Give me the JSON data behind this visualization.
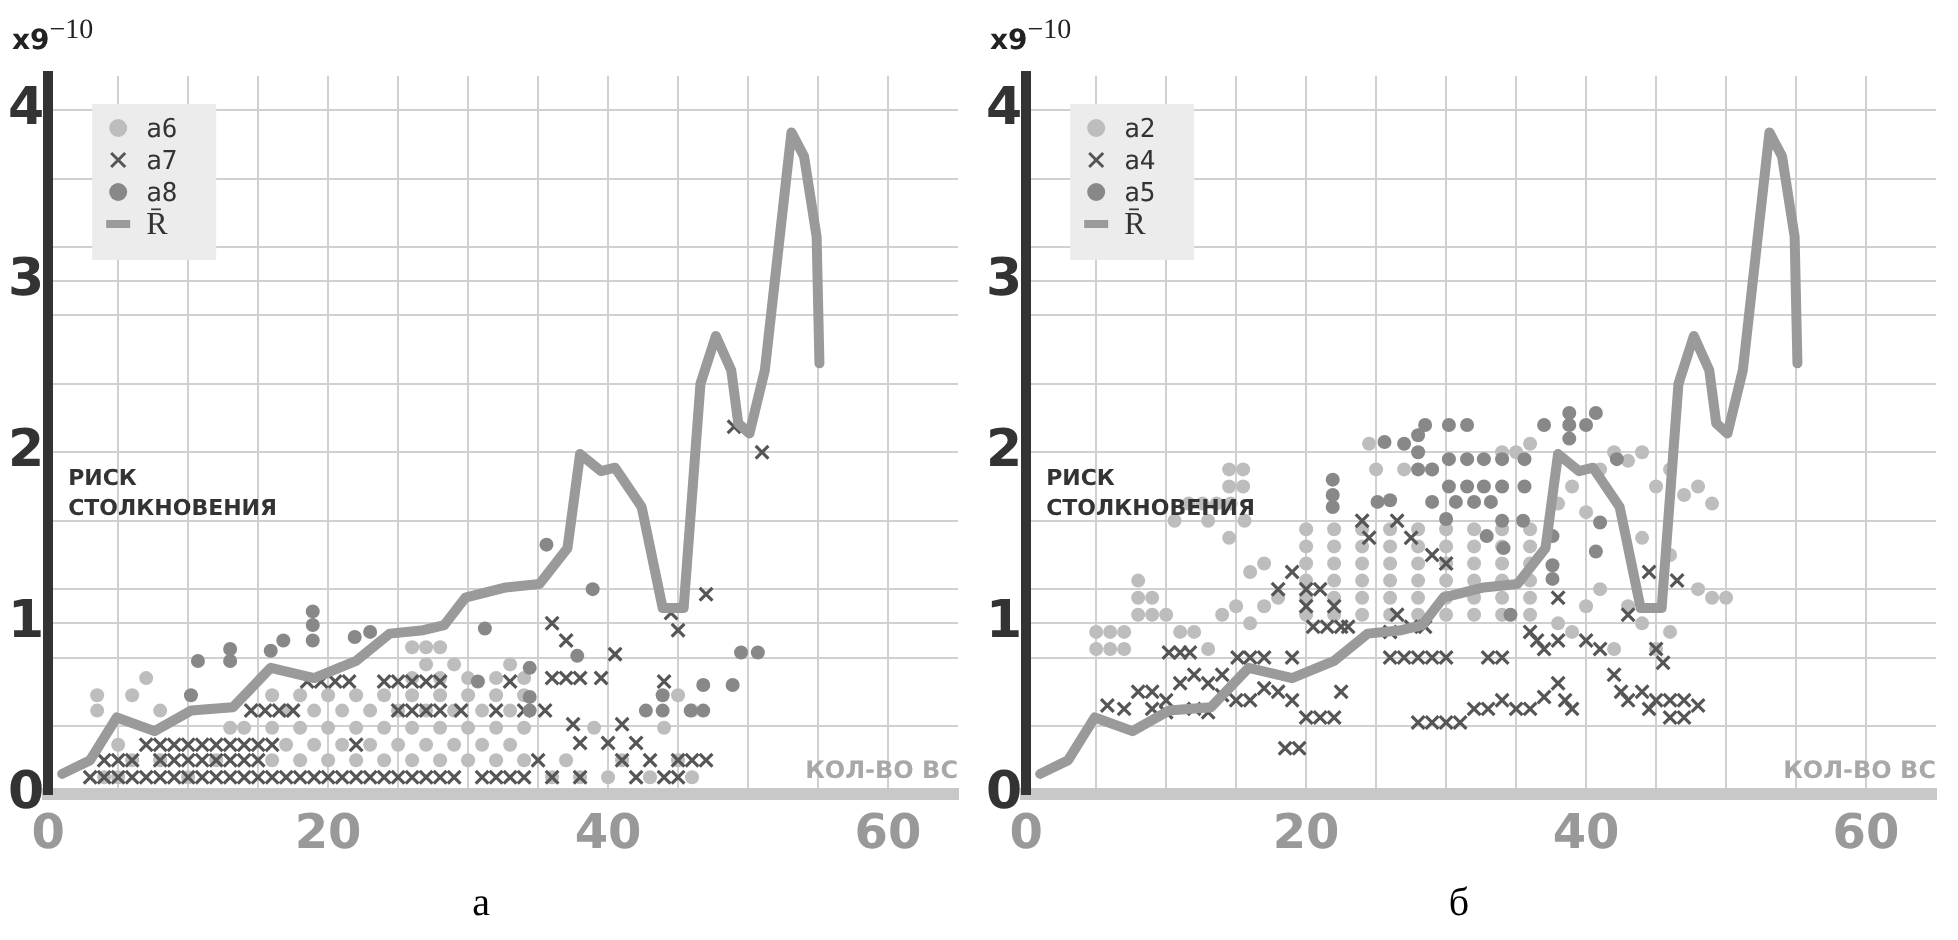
{
  "chart_data": [
    {
      "type": "scatter",
      "title": "а",
      "xlabel": "КОЛ-ВО ВС",
      "ylabel": "РИСК СТОЛКНОВЕНИЯ",
      "annotations": [
        "x9$^{−10}$"
      ],
      "xlim": [
        0,
        65
      ],
      "xticks": [
        0,
        {
          "value": 5,
          "label": null
        },
        {
          "value": 10,
          "label": null
        },
        {
          "value": 15,
          "label": null
        },
        20,
        {
          "value": 25,
          "label": null
        },
        {
          "value": 30,
          "label": null
        },
        {
          "value": 35,
          "label": null
        },
        40,
        {
          "value": 45,
          "label": null
        },
        {
          "value": 50,
          "label": null
        },
        {
          "value": 55,
          "label": null
        },
        60
      ],
      "ylim": [
        0,
        4.2
      ],
      "yticks": [
        0,
        {
          "value": 0.4,
          "label": null
        },
        {
          "value": 0.8,
          "label": null
        },
        1,
        {
          "value": 1.2,
          "label": null
        },
        {
          "value": 1.6,
          "label": null
        },
        2,
        {
          "value": 2.4,
          "label": null
        },
        {
          "value": 2.8,
          "label": null
        },
        3,
        {
          "value": 3.2,
          "label": null
        },
        {
          "value": 3.6,
          "label": null
        },
        4
      ],
      "grid": true,
      "legend": "top left",
      "series": [
        {
          "name": "a6",
          "marker": "circle",
          "color": "#bdbdbd",
          "x": [
            3.5,
            3.5,
            6,
            7,
            8,
            5,
            6,
            4,
            5,
            8,
            10,
            12,
            13,
            14,
            16,
            18,
            20,
            22,
            24,
            26,
            28,
            30,
            32,
            34,
            16,
            18,
            20,
            22,
            24,
            26,
            28,
            30,
            32,
            34,
            16,
            18,
            20,
            22,
            24,
            26,
            28,
            30,
            32,
            34,
            17,
            19,
            21,
            23,
            25,
            27,
            29,
            31,
            33,
            17,
            19,
            21,
            23,
            25,
            27,
            29,
            31,
            33,
            26,
            27,
            28,
            27,
            26,
            29,
            32,
            33,
            34,
            28,
            30,
            36,
            37,
            38,
            39,
            40,
            41,
            43,
            44,
            45,
            46,
            45,
            46
          ],
          "values": [
            0.58,
            0.49,
            0.58,
            0.68,
            0.49,
            0.29,
            0.2,
            0.1,
            0.1,
            0.2,
            0.1,
            0.2,
            0.39,
            0.39,
            0.2,
            0.2,
            0.2,
            0.2,
            0.2,
            0.2,
            0.2,
            0.2,
            0.2,
            0.2,
            0.39,
            0.39,
            0.39,
            0.39,
            0.39,
            0.39,
            0.39,
            0.39,
            0.39,
            0.39,
            0.58,
            0.58,
            0.58,
            0.58,
            0.58,
            0.58,
            0.58,
            0.58,
            0.58,
            0.58,
            0.29,
            0.29,
            0.29,
            0.29,
            0.29,
            0.29,
            0.29,
            0.29,
            0.29,
            0.49,
            0.49,
            0.49,
            0.49,
            0.49,
            0.49,
            0.49,
            0.49,
            0.49,
            0.68,
            0.76,
            0.86,
            0.86,
            0.86,
            0.76,
            0.68,
            0.76,
            0.68,
            0.68,
            0.68,
            0.1,
            0.2,
            0.1,
            0.39,
            0.1,
            0.2,
            0.1,
            0.39,
            0.58,
            0.49,
            0.2,
            0.1
          ]
        },
        {
          "name": "a7",
          "marker": "cross",
          "color": "#555555",
          "x": [
            3,
            4,
            5,
            6,
            7,
            8,
            9,
            10,
            11,
            12,
            13,
            14,
            15,
            16,
            17,
            18,
            19,
            20,
            21,
            22,
            23,
            24,
            25,
            26,
            27,
            28,
            29,
            31,
            32,
            33,
            34,
            4,
            5,
            6,
            8,
            9,
            10,
            11,
            12,
            13,
            14,
            15,
            7,
            8,
            9,
            10,
            11,
            12,
            13,
            14,
            15,
            16,
            14.5,
            15.5,
            16.5,
            17.5,
            25,
            26,
            27,
            28,
            29.5,
            32,
            34,
            18.5,
            19.5,
            20.5,
            21.5,
            24,
            25,
            26,
            27,
            28,
            33,
            35.5,
            36,
            37,
            38,
            39.5,
            37.5,
            38,
            40,
            41,
            42,
            43,
            44,
            45,
            46,
            47,
            36,
            37,
            40.5,
            44,
            44.5,
            45,
            47,
            49,
            51,
            35,
            36,
            38,
            41,
            42,
            45,
            22
          ],
          "values": [
            0.1,
            0.1,
            0.1,
            0.1,
            0.1,
            0.1,
            0.1,
            0.1,
            0.1,
            0.1,
            0.1,
            0.1,
            0.1,
            0.1,
            0.1,
            0.1,
            0.1,
            0.1,
            0.1,
            0.1,
            0.1,
            0.1,
            0.1,
            0.1,
            0.1,
            0.1,
            0.1,
            0.1,
            0.1,
            0.1,
            0.1,
            0.2,
            0.2,
            0.2,
            0.2,
            0.2,
            0.2,
            0.2,
            0.2,
            0.2,
            0.2,
            0.2,
            0.29,
            0.29,
            0.29,
            0.29,
            0.29,
            0.29,
            0.29,
            0.29,
            0.29,
            0.29,
            0.49,
            0.49,
            0.49,
            0.49,
            0.49,
            0.49,
            0.49,
            0.49,
            0.49,
            0.49,
            0.49,
            0.66,
            0.66,
            0.66,
            0.66,
            0.66,
            0.66,
            0.66,
            0.66,
            0.66,
            0.66,
            0.49,
            0.68,
            0.68,
            0.68,
            0.68,
            0.41,
            0.3,
            0.3,
            0.41,
            0.3,
            0.2,
            0.1,
            0.2,
            0.2,
            0.2,
            1.0,
            0.9,
            0.82,
            0.66,
            1.06,
            0.96,
            1.17,
            2.15,
            2.0,
            0.2,
            0.1,
            0.1,
            0.2,
            0.1,
            0.1,
            0.29
          ]
        },
        {
          "name": "a8",
          "marker": "circle",
          "color": "#888888",
          "x": [
            10.2,
            10.7,
            13,
            13,
            15.9,
            16.8,
            18.9,
            18.9,
            18.9,
            21.9,
            23,
            31.2,
            30.7,
            34.4,
            34.4,
            34.4,
            35.6,
            37.8,
            38.9,
            42.7,
            43.9,
            46.8,
            45.9,
            46.8,
            48.9,
            49.5,
            50.7,
            43.9
          ],
          "values": [
            0.58,
            0.78,
            0.85,
            0.78,
            0.84,
            0.9,
            1.07,
            0.99,
            0.9,
            0.92,
            0.95,
            0.97,
            0.66,
            0.74,
            0.57,
            0.49,
            1.46,
            0.81,
            1.2,
            0.49,
            0.49,
            0.64,
            0.49,
            0.49,
            0.64,
            0.83,
            0.83,
            0.58
          ]
        },
        {
          "name": "R̄",
          "type": "line",
          "marker": "none",
          "color": "#9a9a9a",
          "x": [
            1,
            3,
            4.9,
            7.6,
            10.2,
            13.2,
            15.9,
            19,
            22,
            24.4,
            26.8,
            28.3,
            29.8,
            32.7,
            35.1,
            37.1,
            38,
            39.5,
            40.5,
            42.4,
            43.9,
            45.4,
            46.6,
            47.7,
            48.8,
            49.3,
            50.1,
            51.2,
            53.1,
            54,
            54.9,
            55.1
          ],
          "values": [
            0.12,
            0.2,
            0.45,
            0.37,
            0.49,
            0.51,
            0.74,
            0.68,
            0.78,
            0.94,
            0.96,
            0.99,
            1.15,
            1.21,
            1.23,
            1.44,
            1.99,
            1.89,
            1.91,
            1.68,
            1.09,
            1.09,
            2.4,
            2.68,
            2.48,
            2.17,
            2.11,
            2.48,
            3.87,
            3.73,
            3.26,
            2.52
          ]
        }
      ]
    },
    {
      "type": "scatter",
      "title": "б",
      "xlabel": "КОЛ-ВО ВС",
      "ylabel": "РИСК СТОЛКНОВЕНИЯ",
      "annotations": [
        "x9$^{−10}$"
      ],
      "xlim": [
        0,
        65
      ],
      "xticks": [
        0,
        {
          "value": 5,
          "label": null
        },
        {
          "value": 10,
          "label": null
        },
        {
          "value": 15,
          "label": null
        },
        20,
        {
          "value": 25,
          "label": null
        },
        {
          "value": 30,
          "label": null
        },
        {
          "value": 35,
          "label": null
        },
        40,
        {
          "value": 45,
          "label": null
        },
        {
          "value": 50,
          "label": null
        },
        {
          "value": 55,
          "label": null
        },
        60
      ],
      "ylim": [
        0,
        4.2
      ],
      "yticks": [
        0,
        {
          "value": 0.4,
          "label": null
        },
        {
          "value": 0.8,
          "label": null
        },
        1,
        {
          "value": 1.2,
          "label": null
        },
        {
          "value": 1.6,
          "label": null
        },
        2,
        {
          "value": 2.4,
          "label": null
        },
        {
          "value": 2.8,
          "label": null
        },
        3,
        {
          "value": 3.2,
          "label": null
        },
        {
          "value": 3.6,
          "label": null
        },
        4
      ],
      "grid": true,
      "legend": "top left",
      "series": [
        {
          "name": "a2",
          "marker": "circle",
          "color": "#bdbdbd",
          "x": [
            5,
            6,
            7,
            5,
            6,
            7,
            8,
            8,
            9,
            9,
            10,
            11,
            12,
            13,
            8,
            10.6,
            11.6,
            12.6,
            13.6,
            14.6,
            15.6,
            14.5,
            15.5,
            14.5,
            15.5,
            14.5,
            13,
            14,
            15,
            16,
            17,
            18,
            16,
            17,
            20,
            22,
            24,
            26,
            28,
            30,
            32,
            34,
            36,
            20,
            22,
            24,
            26,
            28,
            30,
            32,
            34,
            36,
            20,
            22,
            24,
            26,
            28,
            30,
            32,
            34,
            36,
            20,
            22,
            24,
            26,
            28,
            30,
            32,
            34,
            36,
            20,
            22,
            24,
            26,
            28,
            30,
            32,
            34,
            36,
            20,
            22,
            24,
            26,
            28,
            30,
            32,
            34,
            36,
            24.5,
            25,
            27,
            29,
            34,
            35,
            36,
            38,
            39,
            40,
            41,
            42,
            43,
            44,
            45,
            46,
            47,
            48,
            49,
            48,
            49,
            50,
            44,
            45,
            46,
            43,
            42,
            41,
            40,
            38,
            39,
            46,
            44
          ],
          "values": [
            0.85,
            0.85,
            0.85,
            0.95,
            0.95,
            0.95,
            1.05,
            1.15,
            1.15,
            1.05,
            1.05,
            0.95,
            0.95,
            0.85,
            1.25,
            1.6,
            1.7,
            1.7,
            1.7,
            1.7,
            1.6,
            1.8,
            1.8,
            1.9,
            1.9,
            1.5,
            1.6,
            1.05,
            1.1,
            1.0,
            1.1,
            1.15,
            1.3,
            1.35,
            1.05,
            1.05,
            1.05,
            1.05,
            1.05,
            1.05,
            1.05,
            1.05,
            1.05,
            1.15,
            1.15,
            1.15,
            1.15,
            1.15,
            1.15,
            1.15,
            1.15,
            1.15,
            1.25,
            1.25,
            1.25,
            1.25,
            1.25,
            1.25,
            1.25,
            1.25,
            1.25,
            1.35,
            1.35,
            1.35,
            1.35,
            1.35,
            1.35,
            1.35,
            1.35,
            1.35,
            1.45,
            1.45,
            1.45,
            1.45,
            1.45,
            1.45,
            1.45,
            1.45,
            1.45,
            1.55,
            1.55,
            1.55,
            1.55,
            1.55,
            1.55,
            1.55,
            1.55,
            1.55,
            2.05,
            1.9,
            1.9,
            1.9,
            2.0,
            2.0,
            2.05,
            1.7,
            1.8,
            1.65,
            1.9,
            2.0,
            1.95,
            2.0,
            1.8,
            1.9,
            1.75,
            1.8,
            1.7,
            1.2,
            1.15,
            1.15,
            1.0,
            0.85,
            0.95,
            1.1,
            0.85,
            1.2,
            1.1,
            1.0,
            0.95,
            1.4,
            1.5
          ]
        },
        {
          "name": "a4",
          "marker": "cross",
          "color": "#555555",
          "x": [
            5.8,
            7,
            10.2,
            11,
            11.7,
            8,
            9,
            10,
            11,
            12,
            13,
            14,
            9,
            10,
            12,
            13,
            14,
            15,
            16,
            15.1,
            16,
            17,
            19,
            17,
            18,
            19,
            20,
            21,
            22,
            18.5,
            19.5,
            18,
            19,
            20,
            20,
            21,
            20.5,
            21.5,
            22.5,
            22,
            23,
            22.5,
            24,
            24.5,
            26.5,
            27.5,
            29,
            30,
            26,
            26.5,
            27.5,
            28.5,
            26,
            27,
            28,
            29,
            30,
            28,
            29,
            30,
            31,
            32,
            33,
            34,
            35,
            36,
            33,
            34,
            36,
            36.5,
            37,
            38,
            38,
            38.5,
            39,
            37,
            38,
            40,
            41,
            43,
            42,
            42.5,
            43,
            44,
            44.5,
            45,
            46,
            47,
            48,
            45,
            45.5,
            44.5,
            46.5,
            46,
            47
          ],
          "values": [
            0.52,
            0.5,
            0.83,
            0.83,
            0.83,
            0.6,
            0.6,
            0.55,
            0.65,
            0.7,
            0.65,
            0.7,
            0.5,
            0.48,
            0.5,
            0.48,
            0.58,
            0.55,
            0.55,
            0.8,
            0.8,
            0.8,
            0.8,
            0.62,
            0.6,
            0.55,
            0.45,
            0.45,
            0.45,
            0.27,
            0.27,
            1.2,
            1.3,
            1.2,
            1.1,
            1.2,
            0.98,
            0.98,
            0.98,
            1.1,
            0.98,
            0.6,
            1.6,
            1.5,
            1.6,
            1.5,
            1.4,
            1.35,
            0.95,
            1.05,
            0.98,
            0.98,
            0.8,
            0.8,
            0.8,
            0.8,
            0.8,
            0.42,
            0.42,
            0.42,
            0.42,
            0.5,
            0.5,
            0.55,
            0.5,
            0.5,
            0.8,
            0.8,
            0.95,
            0.9,
            0.85,
            0.9,
            0.65,
            0.55,
            0.5,
            0.57,
            1.15,
            0.9,
            0.85,
            1.05,
            0.7,
            0.6,
            0.55,
            0.6,
            0.5,
            0.55,
            0.55,
            0.55,
            0.52,
            0.85,
            0.77,
            1.3,
            1.25,
            0.45,
            0.45
          ]
        },
        {
          "name": "a5",
          "marker": "circle",
          "color": "#888888",
          "x": [
            21.9,
            21.9,
            21.9,
            25.1,
            26,
            25.6,
            27,
            28,
            28,
            28,
            29,
            28.5,
            30.2,
            31.5,
            30.2,
            31.5,
            32.7,
            34,
            35.6,
            30.2,
            31.5,
            32.7,
            34,
            35.6,
            29,
            30.7,
            32,
            33.2,
            30,
            34,
            35.5,
            32.9,
            34.1,
            34.6,
            37,
            38.8,
            38.8,
            38.8,
            40,
            40.7,
            42.2,
            41,
            40.7,
            37.6,
            37.6,
            37.6
          ],
          "values": [
            1.84,
            1.75,
            1.68,
            1.71,
            1.72,
            2.06,
            2.05,
            2.1,
            2.0,
            1.9,
            1.9,
            2.16,
            2.16,
            2.16,
            1.96,
            1.96,
            1.96,
            1.96,
            1.96,
            1.8,
            1.8,
            1.8,
            1.8,
            1.8,
            1.71,
            1.71,
            1.71,
            1.71,
            1.61,
            1.6,
            1.6,
            1.51,
            1.44,
            1.05,
            2.16,
            2.23,
            2.16,
            2.08,
            2.16,
            2.23,
            1.96,
            1.59,
            1.42,
            1.51,
            1.34,
            1.26
          ]
        },
        {
          "name": "R̄",
          "type": "line",
          "marker": "none",
          "color": "#9a9a9a",
          "x": [
            1,
            3,
            4.9,
            7.6,
            10.2,
            13.2,
            15.9,
            19,
            22,
            24.4,
            26.8,
            28.3,
            29.8,
            32.7,
            35.1,
            37.1,
            38,
            39.5,
            40.5,
            42.4,
            43.9,
            45.4,
            46.6,
            47.7,
            48.8,
            49.3,
            50.1,
            51.2,
            53.1,
            54,
            54.9,
            55.1
          ],
          "values": [
            0.12,
            0.2,
            0.45,
            0.37,
            0.49,
            0.51,
            0.74,
            0.68,
            0.78,
            0.94,
            0.96,
            0.99,
            1.15,
            1.21,
            1.23,
            1.44,
            1.99,
            1.89,
            1.91,
            1.68,
            1.09,
            1.09,
            2.4,
            2.68,
            2.48,
            2.17,
            2.11,
            2.48,
            3.87,
            3.73,
            3.26,
            2.52
          ]
        }
      ]
    }
  ]
}
